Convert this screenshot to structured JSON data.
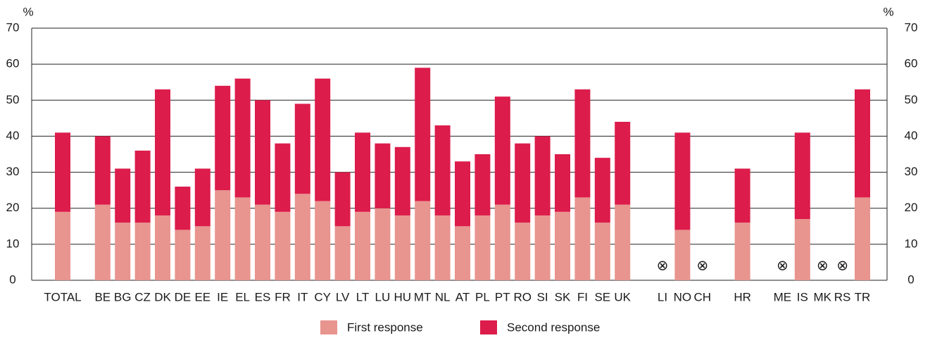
{
  "chart_data": {
    "type": "stacked_bar",
    "y_label": "%",
    "na_label": "⊗",
    "categories": [
      "TOTAL",
      null,
      "BE",
      "BG",
      "CZ",
      "DK",
      "DE",
      "EE",
      "IE",
      "EL",
      "ES",
      "FR",
      "IT",
      "CY",
      "LV",
      "LT",
      "LU",
      "HU",
      "MT",
      "NL",
      "AT",
      "PL",
      "PT",
      "RO",
      "SI",
      "SK",
      "FI",
      "SE",
      "UK",
      null,
      "LI",
      "NO",
      "CH",
      null,
      "HR",
      null,
      "ME",
      "IS",
      "MK",
      "RS",
      "TR"
    ],
    "series": [
      {
        "name": "First response",
        "color": "#e8948f",
        "values": [
          19,
          null,
          21,
          16,
          16,
          18,
          14,
          15,
          25,
          23,
          21,
          19,
          24,
          22,
          15,
          19,
          20,
          18,
          22,
          18,
          15,
          18,
          21,
          16,
          18,
          19,
          23,
          16,
          21,
          null,
          null,
          14,
          null,
          null,
          16,
          null,
          null,
          17,
          null,
          null,
          23
        ]
      },
      {
        "name": "Second response",
        "color": "#dc1c4b",
        "values": [
          22,
          null,
          19,
          15,
          20,
          35,
          12,
          16,
          29,
          33,
          29,
          19,
          25,
          34,
          15,
          22,
          18,
          19,
          37,
          25,
          18,
          17,
          30,
          22,
          22,
          16,
          30,
          18,
          23,
          null,
          null,
          27,
          null,
          null,
          15,
          null,
          null,
          24,
          null,
          null,
          30
        ]
      }
    ],
    "ylim": [
      0,
      70
    ],
    "yticks": [
      0,
      10,
      20,
      30,
      40,
      50,
      60,
      70
    ],
    "grid": true,
    "right_axis": true,
    "legend": "bottom"
  }
}
